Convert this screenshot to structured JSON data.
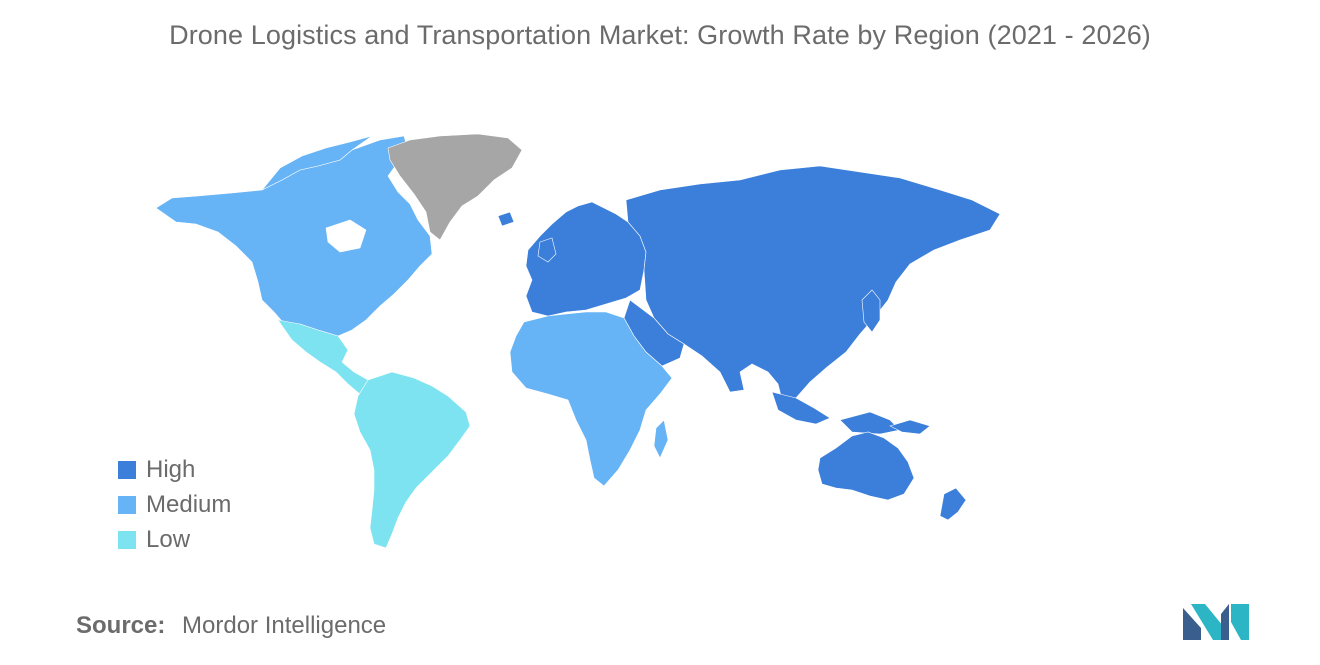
{
  "title": "Drone Logistics and Transportation Market: Growth Rate by Region (2021 - 2026)",
  "legend": {
    "items": [
      {
        "label": "High",
        "color": "#3b7fdb"
      },
      {
        "label": "Medium",
        "color": "#66b3f5"
      },
      {
        "label": "Low",
        "color": "#7de3f0"
      }
    ]
  },
  "no_data_color": "#a6a6a6",
  "regions": {
    "north_america": "Medium",
    "central_america": "Low",
    "south_america": "Low",
    "europe": "High",
    "russia_asia": "High",
    "middle_east": "High",
    "africa": "Medium",
    "oceania": "High",
    "greenland": "none"
  },
  "source": {
    "label": "Source:",
    "value": "Mordor Intelligence"
  },
  "logo": {
    "name": "mordor-intelligence-logo",
    "colors": [
      "#3a5f8f",
      "#2bb5c5"
    ]
  }
}
